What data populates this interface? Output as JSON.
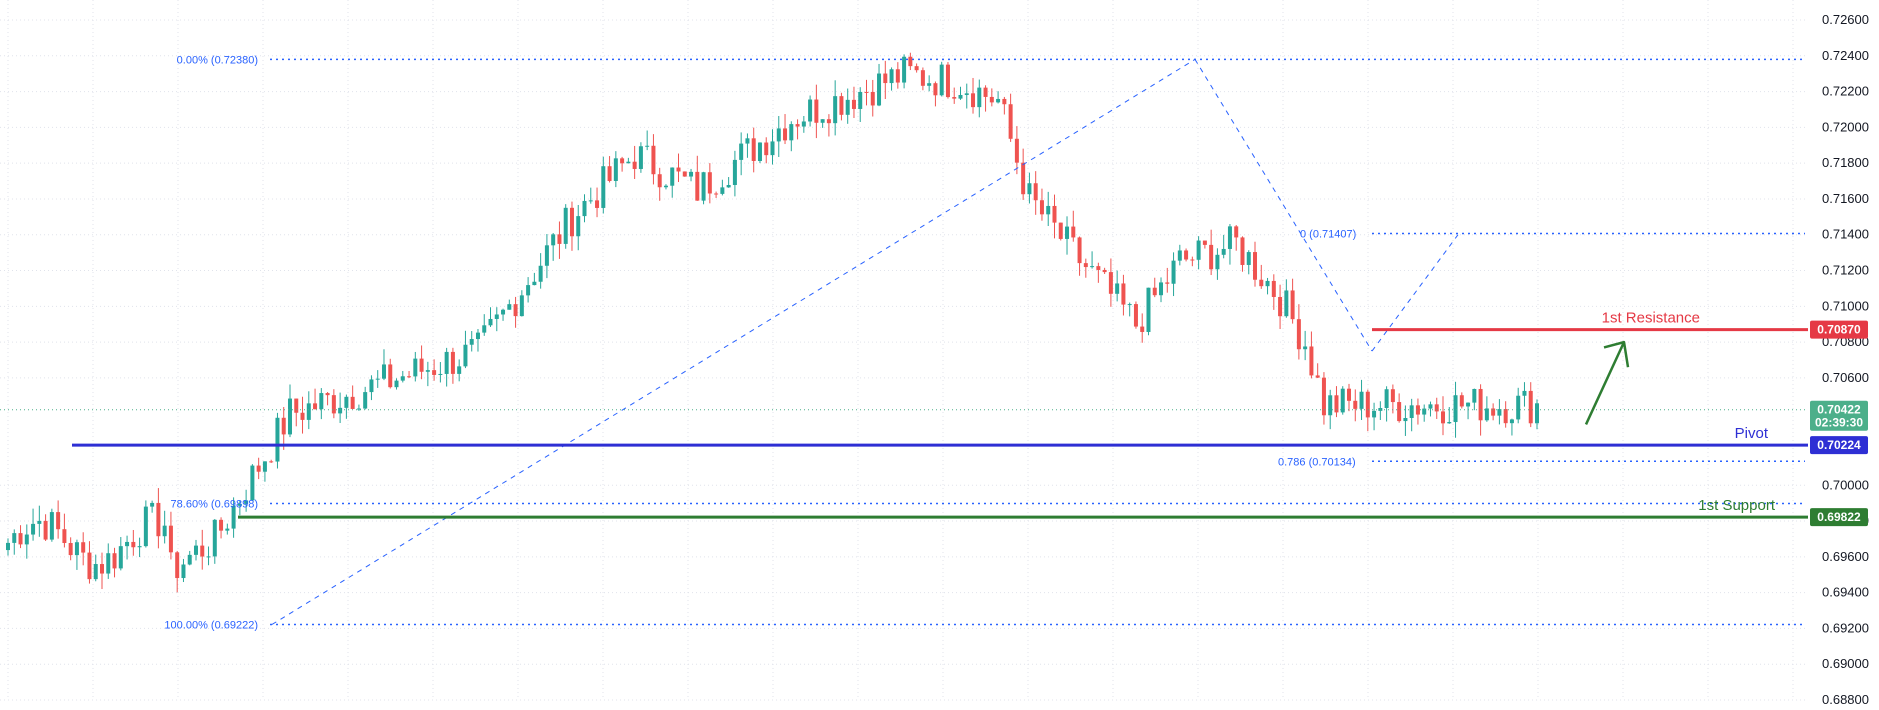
{
  "chart_data": {
    "type": "candlestick",
    "title": "",
    "ylim": [
      0.688,
      0.726
    ],
    "x_count": 245,
    "grid": true,
    "y_ticks": [
      "0.72600",
      "0.72400",
      "0.72200",
      "0.72000",
      "0.71800",
      "0.71600",
      "0.71400",
      "0.71200",
      "0.71000",
      "0.70800",
      "0.70600",
      "0.70000",
      "0.69800",
      "0.69600",
      "0.69400",
      "0.69200",
      "0.69000",
      "0.68800"
    ],
    "last_price": {
      "value": 0.70422,
      "label": "0.70422",
      "countdown": "02:39:30",
      "color": "#4caf8a"
    },
    "levels": [
      {
        "name": "1st Resistance",
        "value": 0.7087,
        "label": "0.70870",
        "color": "#e53945"
      },
      {
        "name": "Pivot",
        "value": 0.70224,
        "label": "0.70224",
        "color": "#2e2fd4"
      },
      {
        "name": "1st Support",
        "value": 0.69822,
        "label": "0.69822",
        "color": "#2e7d32"
      }
    ],
    "fib_main": {
      "high": {
        "label": "0.00% (0.72380)",
        "value": 0.7238
      },
      "mid": {
        "label": "78.60% (0.69898)",
        "value": 0.69898
      },
      "low": {
        "label": "100.00% (0.69222)",
        "value": 0.69222
      }
    },
    "fib_secondary": {
      "high": {
        "label": "0 (0.71407)",
        "value": 0.71407
      },
      "low": {
        "label": "0.786 (0.70134)",
        "value": 0.70134
      }
    },
    "anchors": [
      {
        "x": 25,
        "y": 0.695
      },
      {
        "x": 33,
        "y": 0.697
      },
      {
        "x": 45,
        "y": 0.704
      },
      {
        "x": 75,
        "y": 0.7075
      },
      {
        "x": 90,
        "y": 0.715
      },
      {
        "x": 100,
        "y": 0.7185
      },
      {
        "x": 110,
        "y": 0.7165
      },
      {
        "x": 125,
        "y": 0.7205
      },
      {
        "x": 143,
        "y": 0.723
      },
      {
        "x": 152,
        "y": 0.7225
      },
      {
        "x": 158,
        "y": 0.7215
      },
      {
        "x": 163,
        "y": 0.716
      },
      {
        "x": 170,
        "y": 0.713
      },
      {
        "x": 180,
        "y": 0.709
      },
      {
        "x": 187,
        "y": 0.7125
      },
      {
        "x": 196,
        "y": 0.7135
      },
      {
        "x": 203,
        "y": 0.7105
      },
      {
        "x": 207,
        "y": 0.708
      },
      {
        "x": 210,
        "y": 0.7045
      }
    ]
  }
}
